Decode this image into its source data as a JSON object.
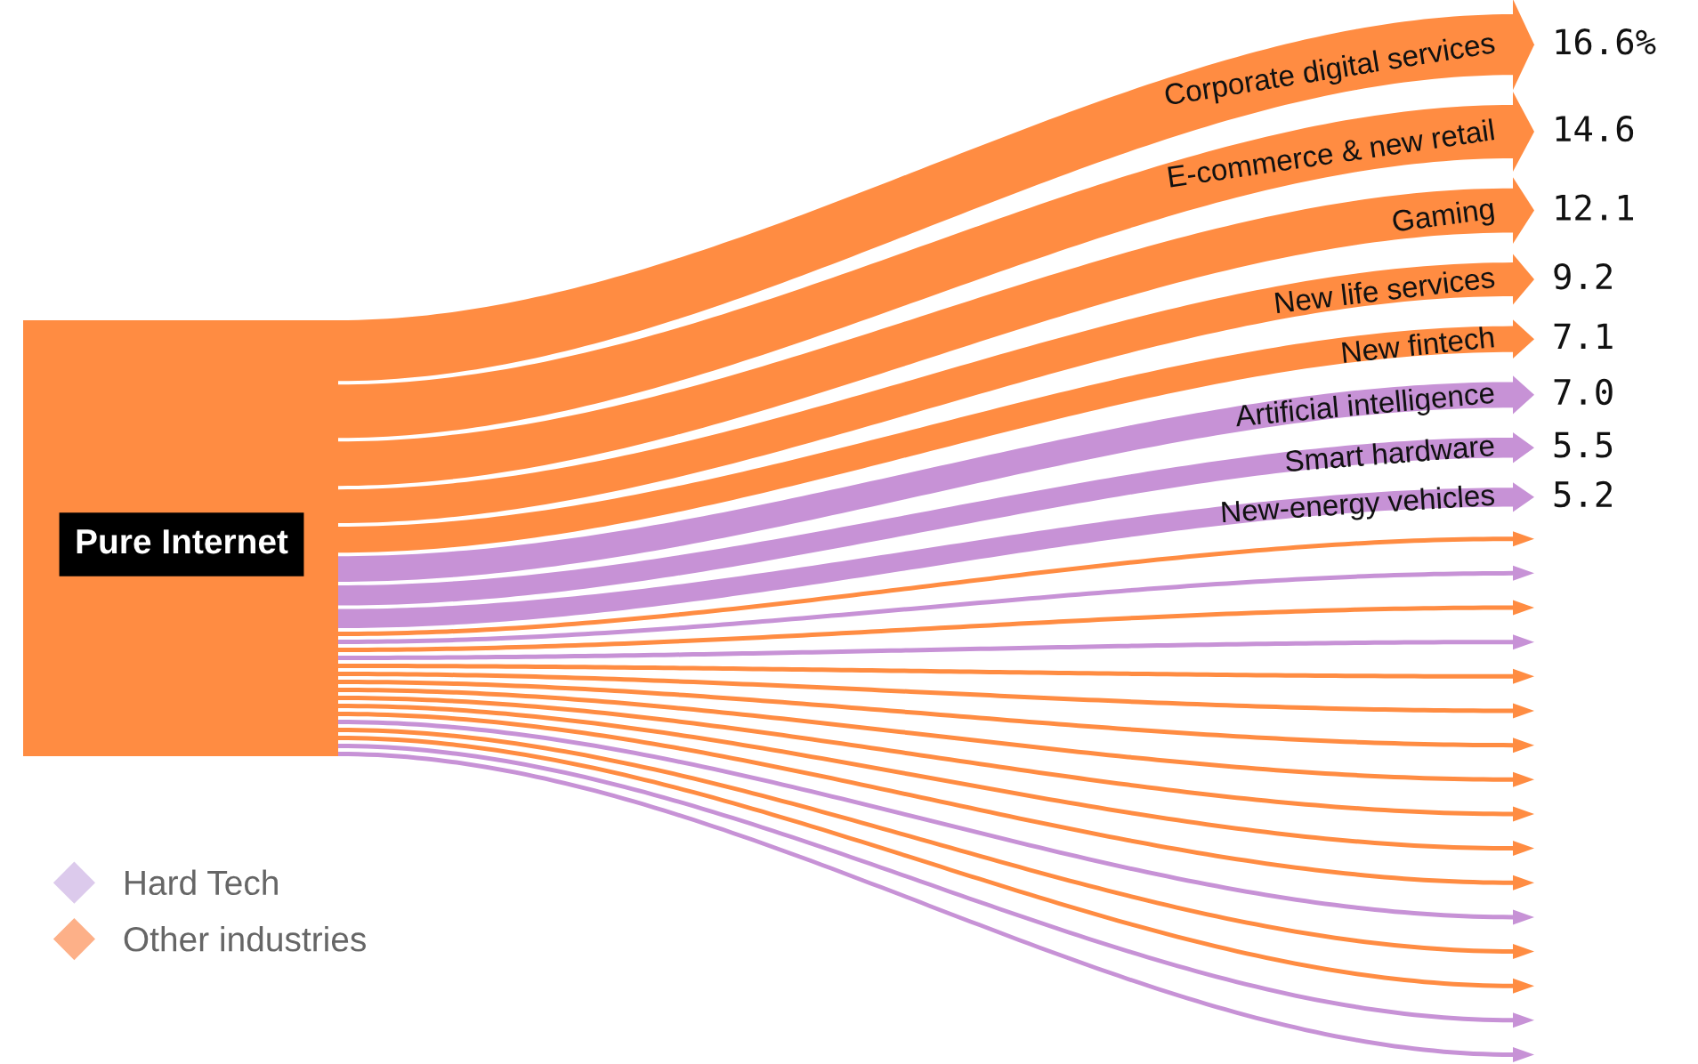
{
  "chart_data": {
    "type": "other",
    "categories": [
      "Corporate digital services",
      "E-commerce & new retail",
      "Gaming",
      "New life services",
      "New fintech",
      "Artificial intelligence",
      "Smart hardware",
      "New-energy vehicles",
      null,
      null,
      null,
      null,
      null,
      null,
      null,
      null,
      null,
      null,
      null,
      null,
      null,
      null,
      null,
      null
    ],
    "colors": [
      "#ff8c42",
      "#ff8c42",
      "#ff8c42",
      "#ff8c42",
      "#ff8c42",
      "#c792d6",
      "#c792d6",
      "#c792d6",
      "#ff8c42",
      "#c792d6",
      "#ff8c42",
      "#c792d6",
      "#ff8c42",
      "#ff8c42",
      "#ff8c42",
      "#ff8c42",
      "#ff8c42",
      "#ff8c42",
      "#ff8c42",
      "#c792d6",
      "#ff8c42",
      "#ff8c42",
      "#c792d6",
      "#c792d6"
    ],
    "series": [
      {
        "name": "Hard Tech",
        "color": "#dccaec",
        "values": [
          null,
          null,
          null,
          null,
          null,
          7.0,
          5.5,
          5.2,
          null,
          null,
          null,
          null,
          null,
          null,
          null,
          null,
          null,
          null,
          null,
          null,
          null,
          null,
          null,
          null
        ],
        "value_labels": [
          null,
          null,
          null,
          null,
          null,
          "7.0",
          "5.5",
          "5.2",
          null,
          null,
          null,
          null,
          null,
          null,
          null,
          null,
          null,
          null,
          null,
          null,
          null,
          null,
          null,
          null
        ]
      },
      {
        "name": "Other industries",
        "color": "#fdb088",
        "values": [
          16.6,
          14.6,
          12.1,
          9.2,
          7.1,
          null,
          null,
          null,
          null,
          null,
          null,
          null,
          null,
          null,
          null,
          null,
          null,
          null,
          null,
          null,
          null,
          null,
          null,
          null
        ],
        "value_labels": [
          "16.6%",
          "14.6",
          "12.1",
          "9.2",
          "7.1",
          null,
          null,
          null,
          null,
          null,
          null,
          null,
          null,
          null,
          null,
          null,
          null,
          null,
          null,
          null,
          null,
          null,
          null,
          null
        ]
      }
    ],
    "legend": "bottom left",
    "annotations": [
      "Pure Internet"
    ]
  }
}
